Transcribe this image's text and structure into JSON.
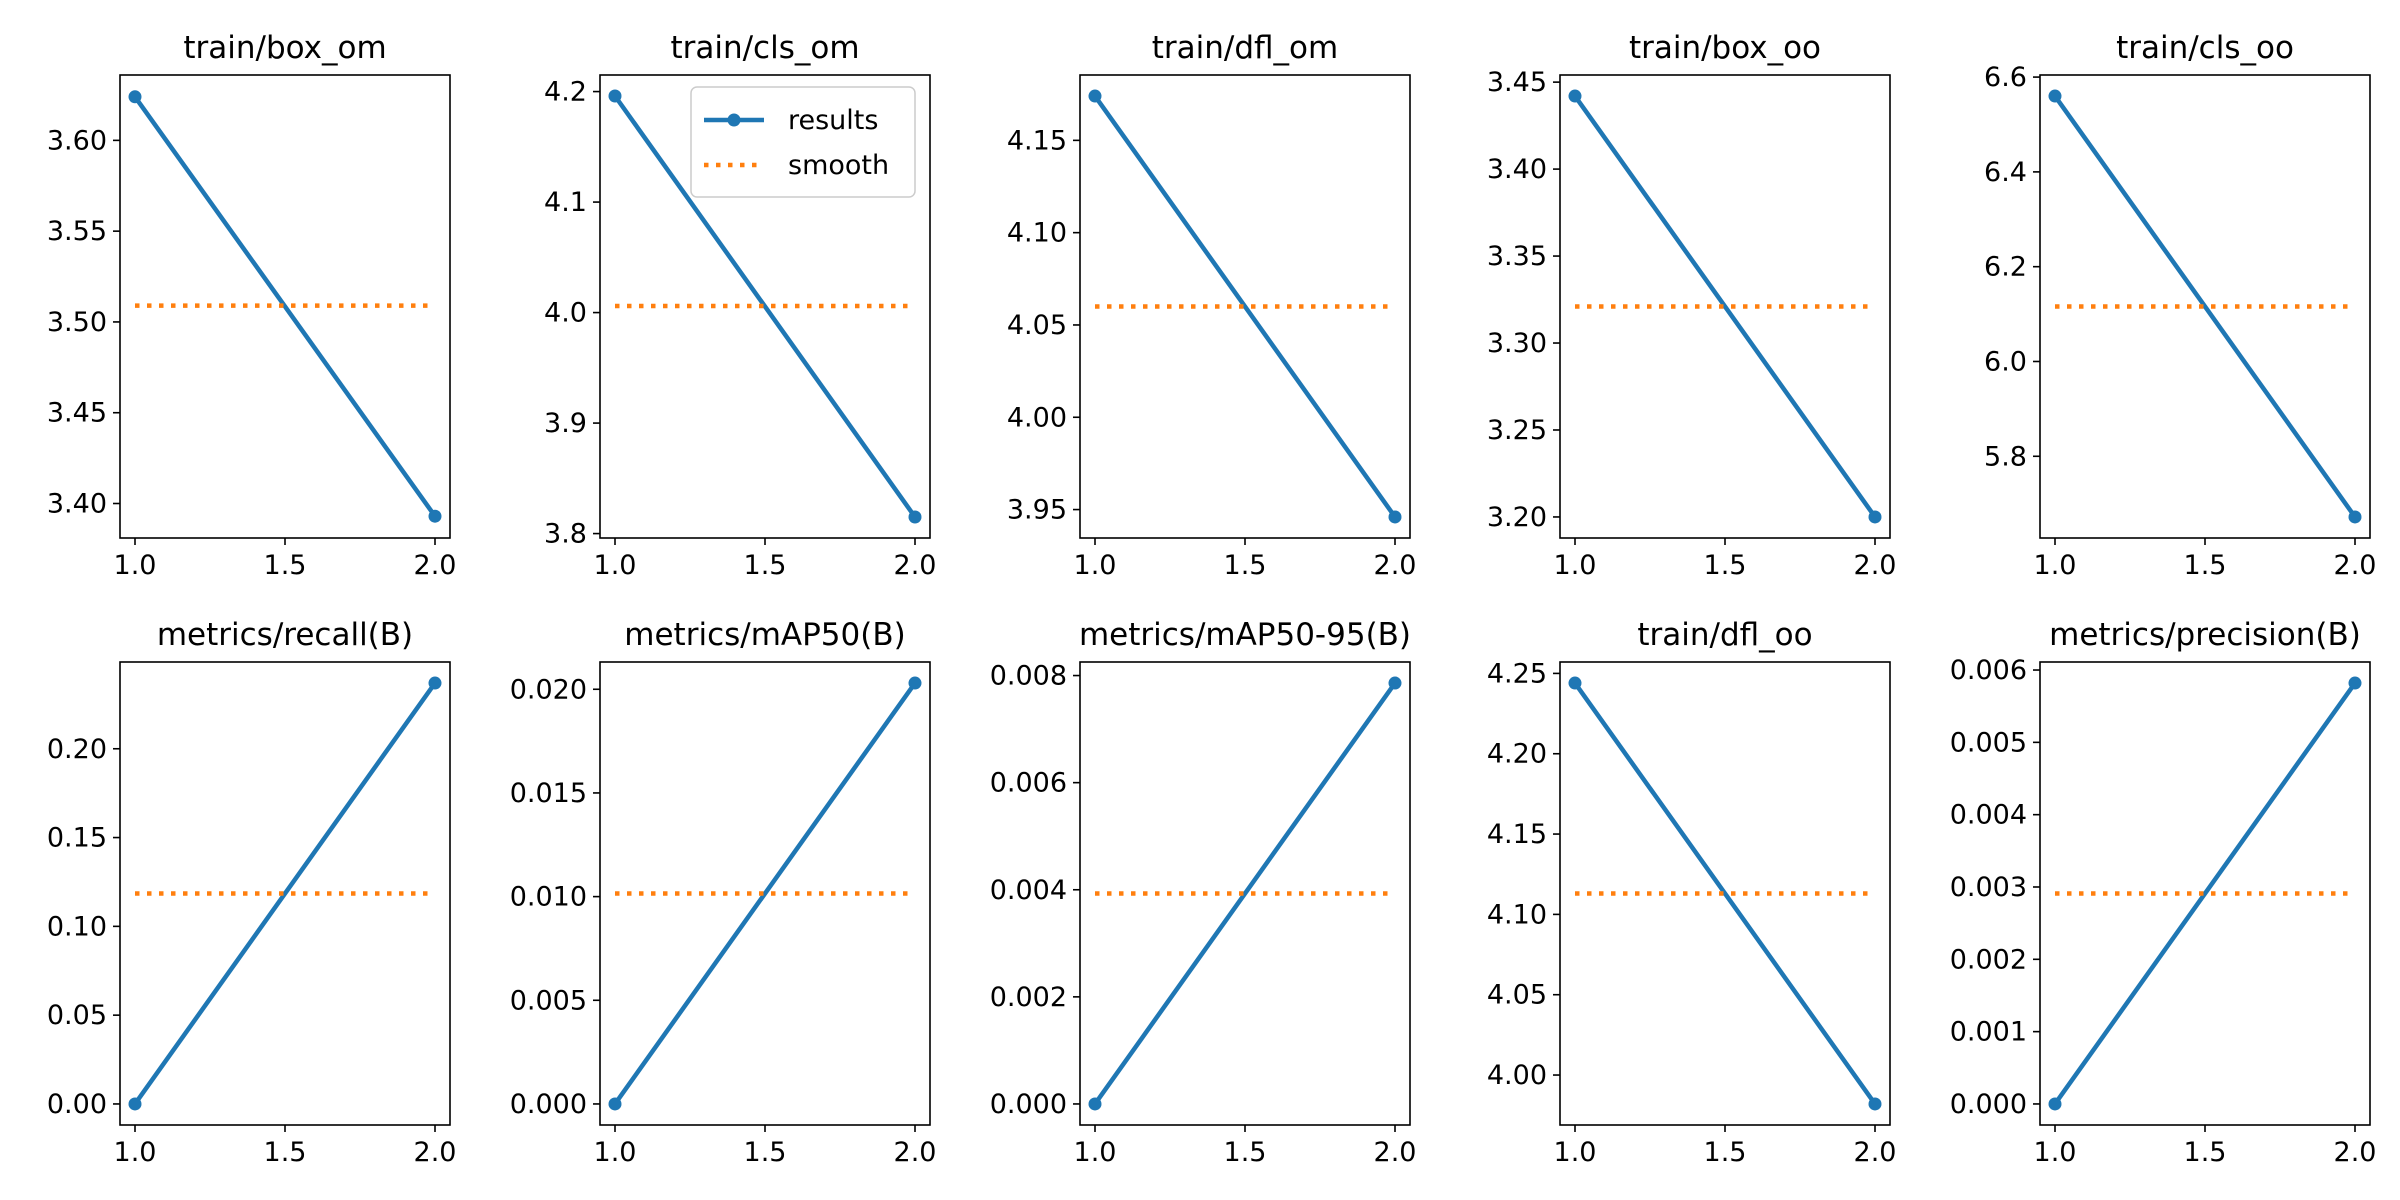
{
  "chart_data": [
    {
      "type": "line",
      "title": "train/box_om",
      "x": [
        1.0,
        2.0
      ],
      "xlim": [
        0.95,
        2.05
      ],
      "xticks": [
        "1.0",
        "1.5",
        "2.0"
      ],
      "series": [
        {
          "name": "results",
          "values": [
            3.624,
            3.393
          ]
        },
        {
          "name": "smooth",
          "values": [
            3.509,
            3.509
          ]
        }
      ],
      "ylim": [
        3.381,
        3.636
      ],
      "yticks": [
        "3.40",
        "3.45",
        "3.50",
        "3.55",
        "3.60"
      ]
    },
    {
      "type": "line",
      "title": "train/cls_om",
      "x": [
        1.0,
        2.0
      ],
      "xlim": [
        0.95,
        2.05
      ],
      "xticks": [
        "1.0",
        "1.5",
        "2.0"
      ],
      "series": [
        {
          "name": "results",
          "values": [
            4.196,
            3.815
          ]
        },
        {
          "name": "smooth",
          "values": [
            4.006,
            4.006
          ]
        }
      ],
      "ylim": [
        3.796,
        4.215
      ],
      "yticks": [
        "3.8",
        "3.9",
        "4.0",
        "4.1",
        "4.2"
      ],
      "legend": {
        "position": "top-right",
        "entries": [
          "results",
          "smooth"
        ]
      }
    },
    {
      "type": "line",
      "title": "train/dfl_om",
      "x": [
        1.0,
        2.0
      ],
      "xlim": [
        0.95,
        2.05
      ],
      "xticks": [
        "1.0",
        "1.5",
        "2.0"
      ],
      "series": [
        {
          "name": "results",
          "values": [
            4.174,
            3.946
          ]
        },
        {
          "name": "smooth",
          "values": [
            4.06,
            4.06
          ]
        }
      ],
      "ylim": [
        3.9346,
        4.1854
      ],
      "yticks": [
        "3.95",
        "4.00",
        "4.05",
        "4.10",
        "4.15"
      ]
    },
    {
      "type": "line",
      "title": "train/box_oo",
      "x": [
        1.0,
        2.0
      ],
      "xlim": [
        0.95,
        2.05
      ],
      "xticks": [
        "1.0",
        "1.5",
        "2.0"
      ],
      "series": [
        {
          "name": "results",
          "values": [
            3.442,
            3.2
          ]
        },
        {
          "name": "smooth",
          "values": [
            3.321,
            3.321
          ]
        }
      ],
      "ylim": [
        3.1879,
        3.4541
      ],
      "yticks": [
        "3.20",
        "3.25",
        "3.30",
        "3.35",
        "3.40",
        "3.45"
      ]
    },
    {
      "type": "line",
      "title": "train/cls_oo",
      "x": [
        1.0,
        2.0
      ],
      "xlim": [
        0.95,
        2.05
      ],
      "xticks": [
        "1.0",
        "1.5",
        "2.0"
      ],
      "series": [
        {
          "name": "results",
          "values": [
            6.56,
            5.672
          ]
        },
        {
          "name": "smooth",
          "values": [
            6.116,
            6.116
          ]
        }
      ],
      "ylim": [
        5.6276,
        6.6044
      ],
      "yticks": [
        "5.8",
        "6.0",
        "6.2",
        "6.4",
        "6.6"
      ]
    },
    {
      "type": "line",
      "title": "metrics/recall(B)",
      "x": [
        1.0,
        2.0
      ],
      "xlim": [
        0.95,
        2.05
      ],
      "xticks": [
        "1.0",
        "1.5",
        "2.0"
      ],
      "series": [
        {
          "name": "results",
          "values": [
            0.0,
            0.237
          ]
        },
        {
          "name": "smooth",
          "values": [
            0.1185,
            0.1185
          ]
        }
      ],
      "ylim": [
        -0.01185,
        0.24885
      ],
      "yticks": [
        "0.00",
        "0.05",
        "0.10",
        "0.15",
        "0.20"
      ]
    },
    {
      "type": "line",
      "title": "metrics/mAP50(B)",
      "x": [
        1.0,
        2.0
      ],
      "xlim": [
        0.95,
        2.05
      ],
      "xticks": [
        "1.0",
        "1.5",
        "2.0"
      ],
      "series": [
        {
          "name": "results",
          "values": [
            0.0,
            0.0203
          ]
        },
        {
          "name": "smooth",
          "values": [
            0.01015,
            0.01015
          ]
        }
      ],
      "ylim": [
        -0.001015,
        0.021315
      ],
      "yticks": [
        "0.000",
        "0.005",
        "0.010",
        "0.015",
        "0.020"
      ]
    },
    {
      "type": "line",
      "title": "metrics/mAP50-95(B)",
      "x": [
        1.0,
        2.0
      ],
      "xlim": [
        0.95,
        2.05
      ],
      "xticks": [
        "1.0",
        "1.5",
        "2.0"
      ],
      "series": [
        {
          "name": "results",
          "values": [
            0.0,
            0.00786
          ]
        },
        {
          "name": "smooth",
          "values": [
            0.00393,
            0.00393
          ]
        }
      ],
      "ylim": [
        -0.000393,
        0.008253
      ],
      "yticks": [
        "0.000",
        "0.002",
        "0.004",
        "0.006",
        "0.008"
      ]
    },
    {
      "type": "line",
      "title": "train/dfl_oo",
      "x": [
        1.0,
        2.0
      ],
      "xlim": [
        0.95,
        2.05
      ],
      "xticks": [
        "1.0",
        "1.5",
        "2.0"
      ],
      "series": [
        {
          "name": "results",
          "values": [
            4.244,
            3.982
          ]
        },
        {
          "name": "smooth",
          "values": [
            4.113,
            4.113
          ]
        }
      ],
      "ylim": [
        3.9689,
        4.2571
      ],
      "yticks": [
        "4.00",
        "4.05",
        "4.10",
        "4.15",
        "4.20",
        "4.25"
      ]
    },
    {
      "type": "line",
      "title": "metrics/precision(B)",
      "x": [
        1.0,
        2.0
      ],
      "xlim": [
        0.95,
        2.05
      ],
      "xticks": [
        "1.0",
        "1.5",
        "2.0"
      ],
      "series": [
        {
          "name": "results",
          "values": [
            0.0,
            0.00582
          ]
        },
        {
          "name": "smooth",
          "values": [
            0.00291,
            0.00291
          ]
        }
      ],
      "ylim": [
        -0.000291,
        0.006111
      ],
      "yticks": [
        "0.000",
        "0.001",
        "0.002",
        "0.003",
        "0.004",
        "0.005",
        "0.006"
      ]
    }
  ],
  "colors": {
    "results": "#1f77b4",
    "smooth": "#ff7f0e",
    "axis": "#000000"
  }
}
